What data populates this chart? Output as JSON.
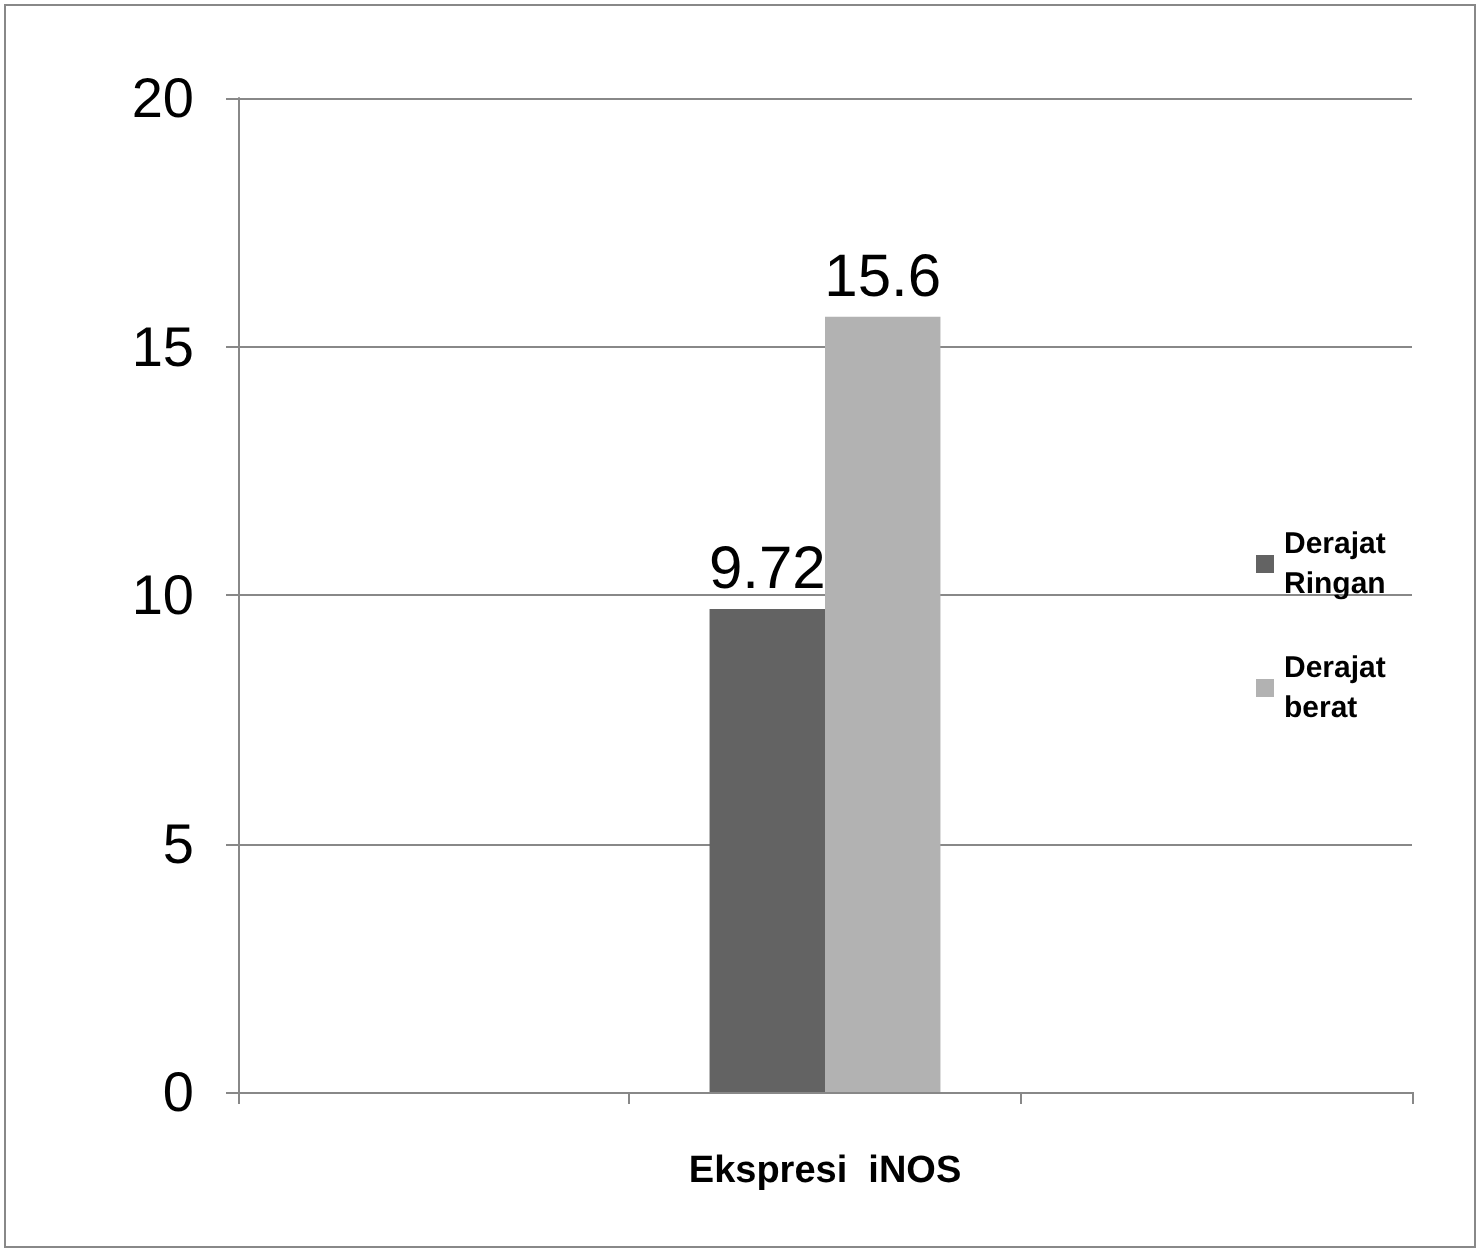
{
  "chart_data": {
    "type": "bar",
    "categories": [
      null,
      "Ekspresi  iNOS",
      null
    ],
    "series": [
      {
        "name": "Derajat Ringan",
        "color": "#636363",
        "values": [
          null,
          9.72,
          null
        ]
      },
      {
        "name": "Derajat berat",
        "color": "#b2b2b2",
        "values": [
          null,
          15.6,
          null
        ]
      }
    ],
    "ylim": [
      0,
      20
    ],
    "yticks": [
      0,
      5,
      10,
      15,
      20
    ],
    "grid": "y",
    "legend": "right",
    "data_labels": true
  }
}
